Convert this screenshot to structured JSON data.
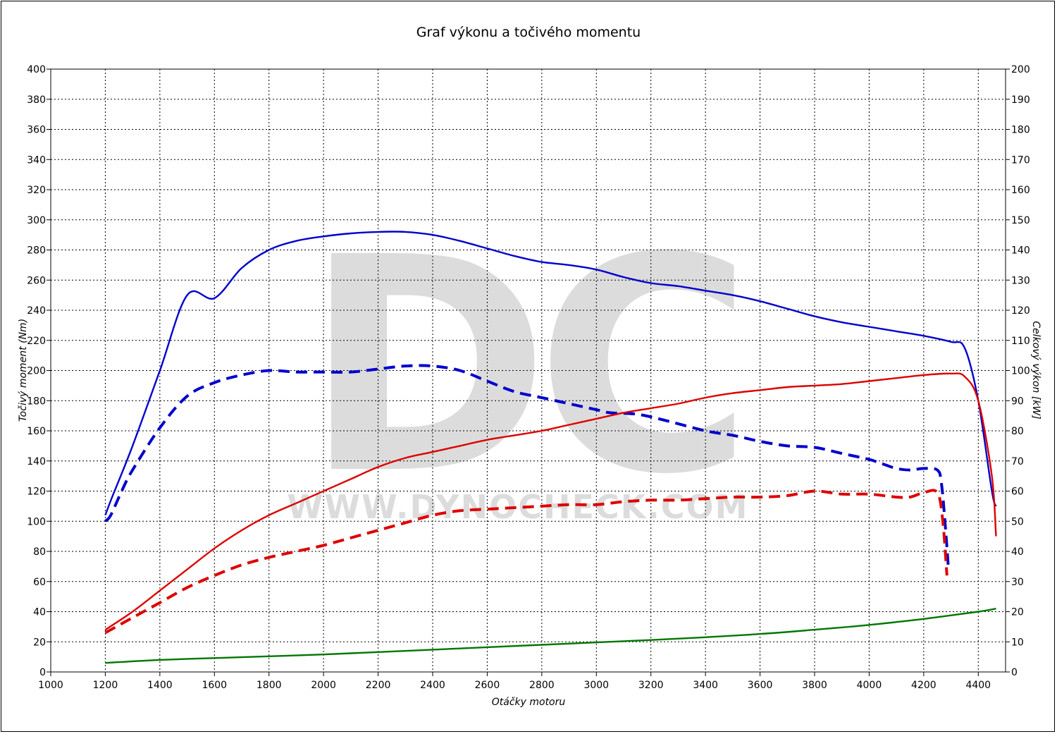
{
  "chart_data": {
    "type": "line",
    "title": "Graf výkonu a točivého momentu",
    "xlabel": "Otáčky motoru",
    "ylabel_left": "Točivý moment (Nm)",
    "ylabel_right": "Celkový výkon [kW]",
    "xlim": [
      1000,
      4500
    ],
    "ylim_left": [
      0,
      400
    ],
    "ylim_right": [
      0,
      200
    ],
    "x_ticks": [
      1000,
      1200,
      1400,
      1600,
      1800,
      2000,
      2200,
      2400,
      2600,
      2800,
      3000,
      3200,
      3400,
      3600,
      3800,
      4000,
      4200,
      4400
    ],
    "x_grid_extra": [
      4500
    ],
    "y_ticks_left": [
      0,
      20,
      40,
      60,
      80,
      100,
      120,
      140,
      160,
      180,
      200,
      220,
      240,
      260,
      280,
      300,
      320,
      340,
      360,
      380,
      400
    ],
    "y_ticks_right": [
      0,
      10,
      20,
      30,
      40,
      50,
      60,
      70,
      80,
      90,
      100,
      110,
      120,
      130,
      140,
      150,
      160,
      170,
      180,
      190,
      200
    ],
    "grid": true,
    "watermark": {
      "logo": "DC",
      "text": "WWW.DYNOCHECK.COM"
    },
    "colors": {
      "blue": "#0000cc",
      "red": "#dd0000",
      "green": "#007700",
      "grid": "#000000",
      "watermark": "#dcdcdc"
    },
    "series": [
      {
        "axis": "left",
        "color": "#0000cc",
        "style": "solid",
        "x": [
          1200,
          1225,
          1300,
          1400,
          1500,
          1600,
          1700,
          1800,
          1900,
          2000,
          2100,
          2200,
          2300,
          2400,
          2500,
          2600,
          2700,
          2800,
          2900,
          3000,
          3100,
          3200,
          3300,
          3400,
          3500,
          3600,
          3700,
          3800,
          3900,
          4000,
          4100,
          4200,
          4300,
          4350,
          4400,
          4450,
          4465
        ],
        "y": [
          104,
          116,
          150,
          200,
          250,
          248,
          268,
          280,
          286,
          289,
          291,
          292,
          292,
          290,
          286,
          281,
          276,
          272,
          270,
          267,
          262,
          258,
          256,
          253,
          250,
          246,
          241,
          236,
          232,
          229,
          226,
          223,
          219,
          215,
          180,
          120,
          110
        ]
      },
      {
        "axis": "left",
        "color": "#0000cc",
        "style": "dashed",
        "x": [
          1200,
          1220,
          1260,
          1300,
          1400,
          1500,
          1600,
          1700,
          1800,
          1900,
          2000,
          2100,
          2200,
          2300,
          2400,
          2500,
          2600,
          2700,
          2800,
          2900,
          3000,
          3050,
          3150,
          3250,
          3400,
          3500,
          3600,
          3700,
          3800,
          3900,
          4000,
          4050,
          4100,
          4150,
          4200,
          4250,
          4265,
          4280,
          4290
        ],
        "y": [
          100,
          104,
          120,
          134,
          162,
          183,
          192,
          197,
          200,
          199,
          199,
          199,
          201,
          203,
          203,
          200,
          193,
          186,
          182,
          178,
          174,
          172,
          171,
          167,
          160,
          157,
          153,
          150,
          149,
          145,
          141,
          138,
          135,
          134,
          135,
          134,
          125,
          95,
          70
        ]
      },
      {
        "axis": "right",
        "color": "#dd0000",
        "style": "solid",
        "x": [
          1200,
          1300,
          1400,
          1500,
          1600,
          1700,
          1800,
          1900,
          2000,
          2100,
          2200,
          2300,
          2400,
          2500,
          2600,
          2700,
          2800,
          2900,
          3000,
          3100,
          3200,
          3300,
          3400,
          3500,
          3600,
          3700,
          3800,
          3900,
          4000,
          4100,
          4200,
          4300,
          4350,
          4400,
          4450,
          4465
        ],
        "y": [
          14,
          20,
          27,
          34,
          41,
          47,
          52,
          56,
          60,
          64,
          68,
          71,
          73,
          75,
          77,
          78.5,
          80,
          82,
          84,
          86,
          87.5,
          89,
          91,
          92.5,
          93.5,
          94.5,
          95,
          95.5,
          96.5,
          97.5,
          98.5,
          99,
          98,
          90,
          65,
          45
        ]
      },
      {
        "axis": "right",
        "color": "#dd0000",
        "style": "dashed",
        "x": [
          1200,
          1300,
          1400,
          1500,
          1600,
          1700,
          1800,
          1900,
          2000,
          2100,
          2200,
          2300,
          2400,
          2500,
          2600,
          2700,
          2800,
          2900,
          3000,
          3100,
          3200,
          3300,
          3400,
          3500,
          3600,
          3700,
          3800,
          3900,
          4000,
          4100,
          4150,
          4200,
          4250,
          4270,
          4285
        ],
        "y": [
          13,
          18,
          23,
          28,
          32,
          35.5,
          38,
          40,
          42,
          44.5,
          47,
          49.5,
          52,
          53.5,
          54,
          54.5,
          55,
          55.5,
          55.5,
          56.5,
          57,
          57,
          57.5,
          58,
          58,
          58.5,
          60,
          59,
          59,
          58,
          58,
          59.5,
          59.5,
          50,
          32
        ]
      },
      {
        "axis": "right",
        "color": "#007700",
        "style": "solid",
        "x": [
          1200,
          1400,
          1600,
          1800,
          2000,
          2200,
          2400,
          2600,
          2800,
          3000,
          3200,
          3400,
          3600,
          3800,
          4000,
          4200,
          4400,
          4465
        ],
        "y": [
          3,
          4,
          4.6,
          5.2,
          5.8,
          6.6,
          7.4,
          8.2,
          9,
          9.8,
          10.6,
          11.5,
          12.6,
          14,
          15.6,
          17.6,
          20,
          21
        ]
      }
    ]
  }
}
